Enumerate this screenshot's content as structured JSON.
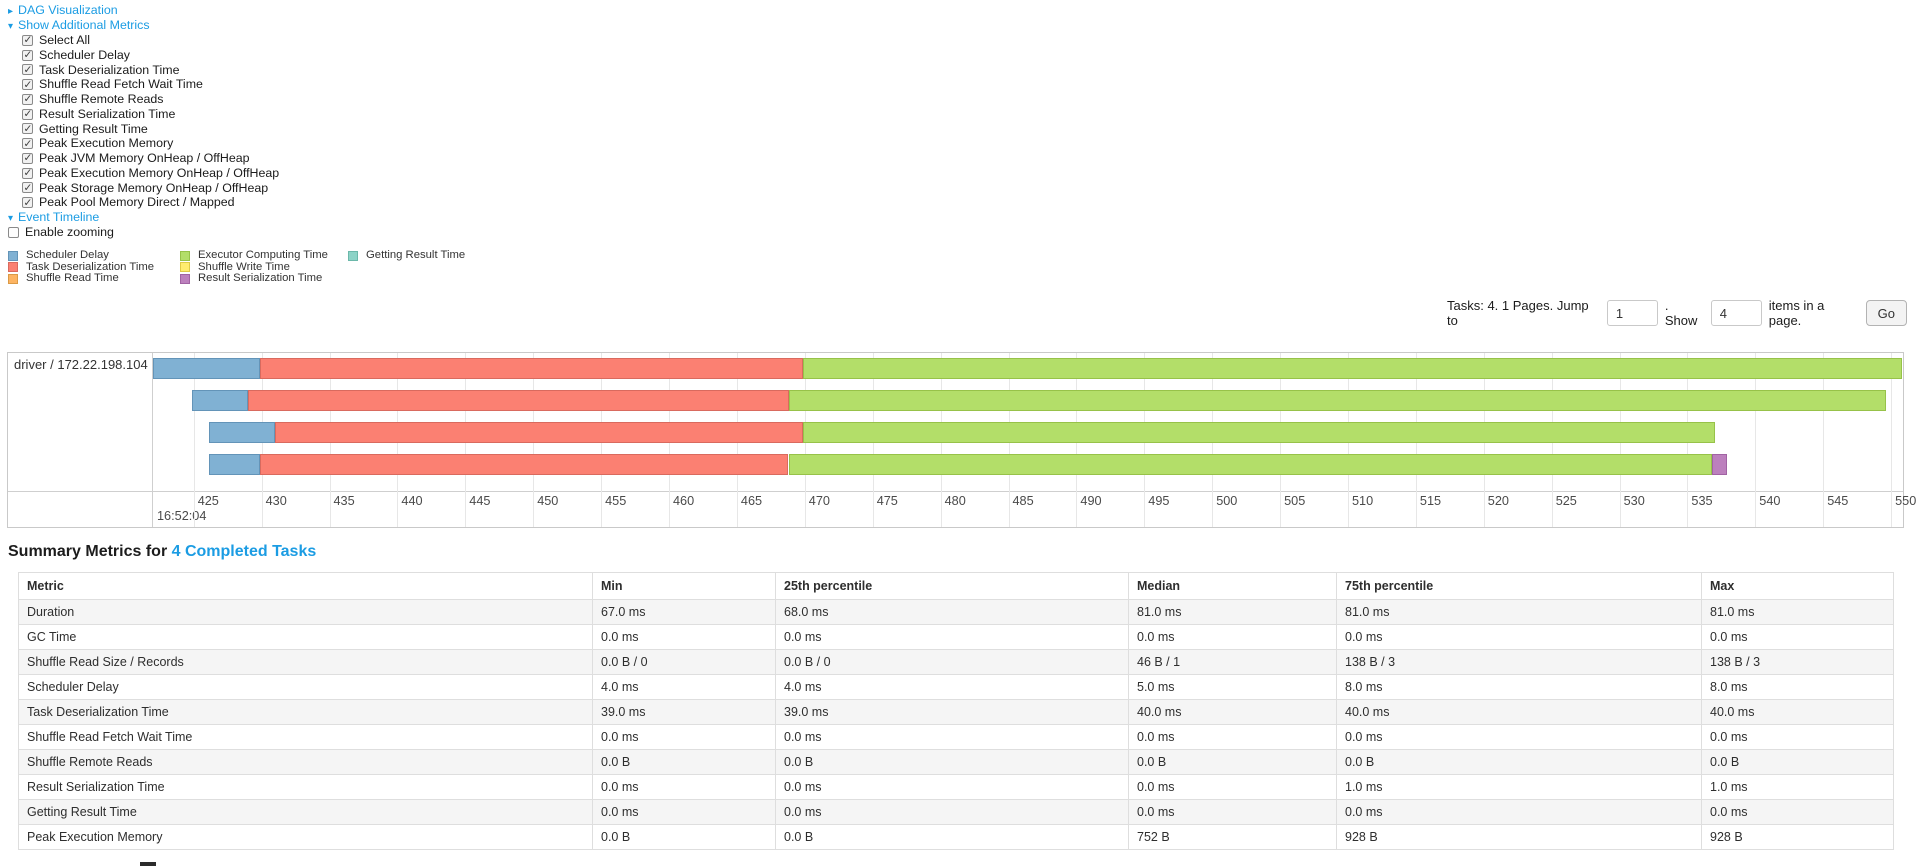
{
  "colors": {
    "link": "#1b9ce3",
    "scheduler_delay": "#80B1D3",
    "scheduler_delay_border": "#6394B8",
    "task_deserialization": "#FB8072",
    "task_deserialization_border": "#D96A5E",
    "shuffle_read": "#FDB462",
    "shuffle_read_border": "#DB9A46",
    "executor_computing": "#B3DE69",
    "executor_computing_border": "#97C249",
    "shuffle_write": "#FFED6F",
    "shuffle_write_border": "#DFCB47",
    "result_serialization": "#BC80BD",
    "result_serialization_border": "#A163A3",
    "getting_result": "#8DD3C7",
    "getting_result_border": "#6BB8AA"
  },
  "links": {
    "dag": "DAG Visualization",
    "additional_metrics": "Show Additional Metrics",
    "event_timeline": "Event Timeline"
  },
  "checkboxes": {
    "items": [
      {
        "label": "Select All",
        "checked": true
      },
      {
        "label": "Scheduler Delay",
        "checked": true
      },
      {
        "label": "Task Deserialization Time",
        "checked": true
      },
      {
        "label": "Shuffle Read Fetch Wait Time",
        "checked": true
      },
      {
        "label": "Shuffle Remote Reads",
        "checked": true
      },
      {
        "label": "Result Serialization Time",
        "checked": true
      },
      {
        "label": "Getting Result Time",
        "checked": true
      },
      {
        "label": "Peak Execution Memory",
        "checked": true
      },
      {
        "label": "Peak JVM Memory OnHeap / OffHeap",
        "checked": true
      },
      {
        "label": "Peak Execution Memory OnHeap / OffHeap",
        "checked": true
      },
      {
        "label": "Peak Storage Memory OnHeap / OffHeap",
        "checked": true
      },
      {
        "label": "Peak Pool Memory Direct / Mapped",
        "checked": true
      }
    ],
    "enable_zooming": {
      "label": "Enable zooming",
      "checked": false
    }
  },
  "legend": {
    "items": [
      {
        "label": "Scheduler Delay",
        "key": "scheduler_delay",
        "col": 0
      },
      {
        "label": "Task Deserialization Time",
        "key": "task_deserialization",
        "col": 0
      },
      {
        "label": "Shuffle Read Time",
        "key": "shuffle_read",
        "col": 0
      },
      {
        "label": "Executor Computing Time",
        "key": "executor_computing",
        "col": 1
      },
      {
        "label": "Shuffle Write Time",
        "key": "shuffle_write",
        "col": 1
      },
      {
        "label": "Result Serialization Time",
        "key": "result_serialization",
        "col": 1
      },
      {
        "label": "Getting Result Time",
        "key": "getting_result",
        "col": 2
      }
    ]
  },
  "pagination": {
    "tasks_text": "Tasks: 4. 1 Pages. Jump to",
    "jump_value": "1",
    "show_text": ". Show",
    "show_value": "4",
    "items_text": "items in a page.",
    "go_label": "Go"
  },
  "chart_data": {
    "type": "timeline-gantt",
    "group_label": "driver / 172.22.198.104",
    "x_window": [
      422.0,
      550.8
    ],
    "tick_start": 425,
    "tick_end": 550,
    "tick_step": 5,
    "major_tick_label": "16:52:04",
    "row_tops": [
      5,
      37,
      69,
      101
    ],
    "tasks": [
      {
        "segments": [
          {
            "metric": "scheduler_delay",
            "from": 422.0,
            "to": 429.9
          },
          {
            "metric": "task_deserialization",
            "from": 429.9,
            "to": 469.9
          },
          {
            "metric": "executor_computing",
            "from": 469.9,
            "to": 550.8
          }
        ]
      },
      {
        "segments": [
          {
            "metric": "scheduler_delay",
            "from": 424.9,
            "to": 429.0
          },
          {
            "metric": "task_deserialization",
            "from": 429.0,
            "to": 468.8
          },
          {
            "metric": "executor_computing",
            "from": 468.8,
            "to": 549.6
          }
        ]
      },
      {
        "segments": [
          {
            "metric": "scheduler_delay",
            "from": 426.1,
            "to": 431.0
          },
          {
            "metric": "task_deserialization",
            "from": 431.0,
            "to": 469.9
          },
          {
            "metric": "executor_computing",
            "from": 469.9,
            "to": 537.0
          }
        ]
      },
      {
        "segments": [
          {
            "metric": "scheduler_delay",
            "from": 426.1,
            "to": 429.9
          },
          {
            "metric": "task_deserialization",
            "from": 429.9,
            "to": 468.8
          },
          {
            "metric": "executor_computing",
            "from": 468.8,
            "to": 536.8
          },
          {
            "metric": "result_serialization",
            "from": 536.8,
            "to": 537.9
          }
        ]
      }
    ]
  },
  "summary_metrics": {
    "heading_prefix": "Summary Metrics for ",
    "heading_link": "4 Completed Tasks",
    "table": {
      "headers": [
        "Metric",
        "Min",
        "25th percentile",
        "Median",
        "75th percentile",
        "Max"
      ],
      "rows": [
        [
          "Duration",
          "67.0 ms",
          "68.0 ms",
          "81.0 ms",
          "81.0 ms",
          "81.0 ms"
        ],
        [
          "GC Time",
          "0.0 ms",
          "0.0 ms",
          "0.0 ms",
          "0.0 ms",
          "0.0 ms"
        ],
        [
          "Shuffle Read Size / Records",
          "0.0 B / 0",
          "0.0 B / 0",
          "46 B / 1",
          "138 B / 3",
          "138 B / 3"
        ],
        [
          "Scheduler Delay",
          "4.0 ms",
          "4.0 ms",
          "5.0 ms",
          "8.0 ms",
          "8.0 ms"
        ],
        [
          "Task Deserialization Time",
          "39.0 ms",
          "39.0 ms",
          "40.0 ms",
          "40.0 ms",
          "40.0 ms"
        ],
        [
          "Shuffle Read Fetch Wait Time",
          "0.0 ms",
          "0.0 ms",
          "0.0 ms",
          "0.0 ms",
          "0.0 ms"
        ],
        [
          "Shuffle Remote Reads",
          "0.0 B",
          "0.0 B",
          "0.0 B",
          "0.0 B",
          "0.0 B"
        ],
        [
          "Result Serialization Time",
          "0.0 ms",
          "0.0 ms",
          "0.0 ms",
          "1.0 ms",
          "1.0 ms"
        ],
        [
          "Getting Result Time",
          "0.0 ms",
          "0.0 ms",
          "0.0 ms",
          "0.0 ms",
          "0.0 ms"
        ],
        [
          "Peak Execution Memory",
          "0.0 B",
          "0.0 B",
          "752 B",
          "928 B",
          "928 B"
        ]
      ]
    }
  }
}
